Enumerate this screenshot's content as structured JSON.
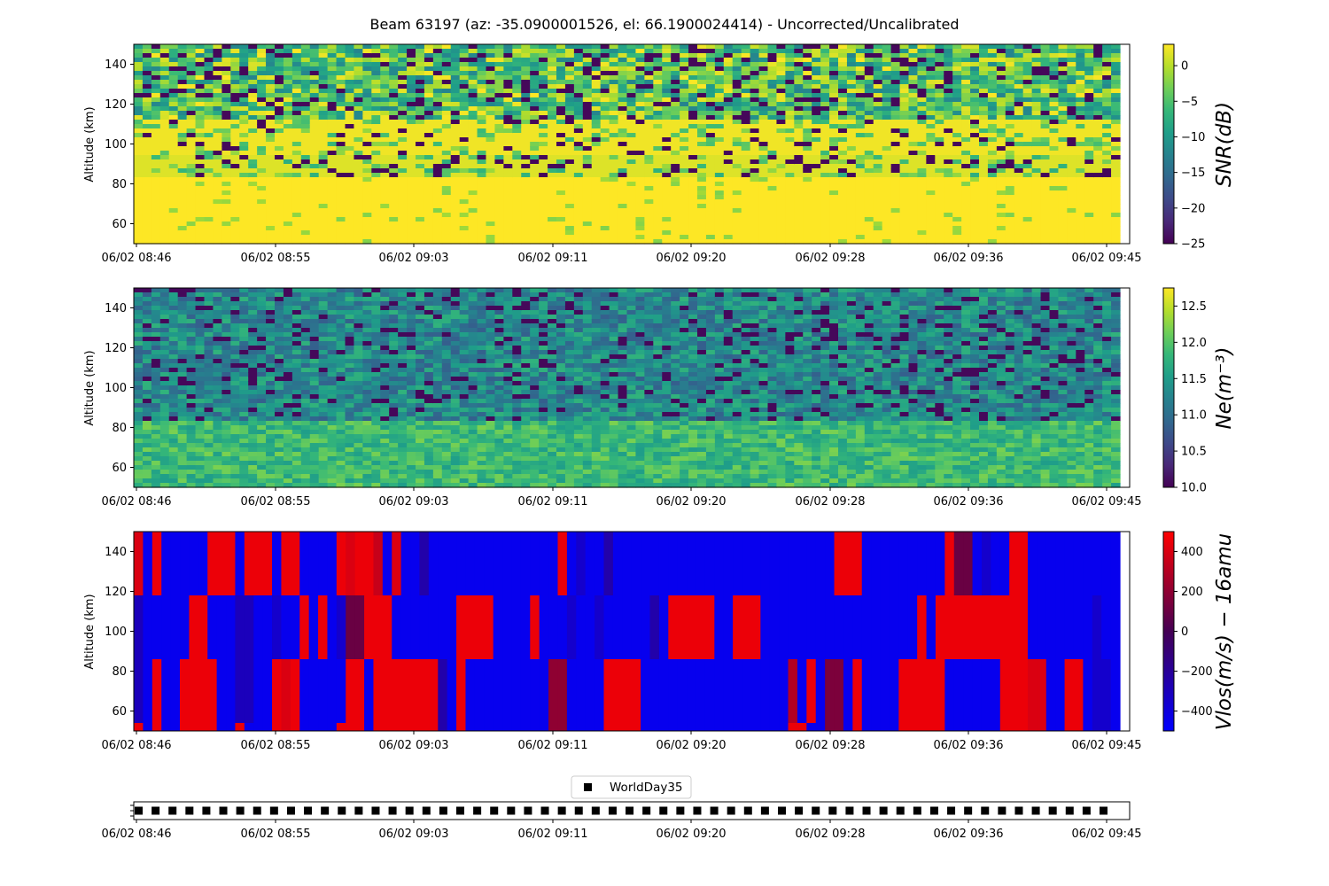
{
  "title": "Beam 63197 (az: -35.0900001526, el: 66.1900024414) - Uncorrected/Uncalibrated",
  "colors": {
    "viridis": [
      "#440154",
      "#482878",
      "#3e4989",
      "#31688e",
      "#26828e",
      "#1f9e89",
      "#35b779",
      "#6ece58",
      "#b5de2b",
      "#fde725"
    ],
    "vlos": [
      "#0000ff",
      "#440154",
      "#ff0000"
    ]
  },
  "chart_data": [
    {
      "type": "heatmap",
      "name": "snr",
      "ylabel": "Altitude (km)",
      "ylim": [
        50,
        150
      ],
      "yticks": [
        "60",
        "80",
        "100",
        "120",
        "140"
      ],
      "xticks": [
        "06/02 08:46",
        "06/02 08:55",
        "06/02 09:03",
        "06/02 09:11",
        "06/02 09:20",
        "06/02 09:28",
        "06/02 09:36",
        "06/02 09:45"
      ],
      "colorbar": {
        "label": "SNR(dB)",
        "range": [
          -25,
          3
        ],
        "ticks": [
          "0",
          "−5",
          "−10",
          "−15",
          "−20",
          "−25"
        ],
        "colormap": "viridis"
      },
      "description": "Saturated (~0 dB) below ~84 km and around 93-110 km; mixed -25 to 0 dB noisy returns above ~110 km"
    },
    {
      "type": "heatmap",
      "name": "ne",
      "ylabel": "Altitude (km)",
      "ylim": [
        50,
        150
      ],
      "yticks": [
        "60",
        "80",
        "100",
        "120",
        "140"
      ],
      "xticks": [
        "06/02 08:46",
        "06/02 08:55",
        "06/02 09:03",
        "06/02 09:11",
        "06/02 09:20",
        "06/02 09:28",
        "06/02 09:36",
        "06/02 09:45"
      ],
      "colorbar": {
        "label": "Ne(m⁻³)",
        "range": [
          10.0,
          12.75
        ],
        "ticks": [
          "12.5",
          "12.0",
          "11.5",
          "11.0",
          "10.5",
          "10.0"
        ],
        "colormap": "viridis"
      },
      "description": "log10 electron density ~11.3-12.0 below 84 km, ~10.5-11.5 above with dark low-value streaks"
    },
    {
      "type": "heatmap",
      "name": "vlos",
      "ylabel": "Altitude (km)",
      "ylim": [
        50,
        150
      ],
      "yticks": [
        "60",
        "80",
        "100",
        "120",
        "140"
      ],
      "xticks": [
        "06/02 08:46",
        "06/02 08:55",
        "06/02 09:03",
        "06/02 09:11",
        "06/02 09:20",
        "06/02 09:28",
        "06/02 09:36",
        "06/02 09:45"
      ],
      "colorbar": {
        "label": "Vlos(m/s) − 16amu",
        "range": [
          -500,
          500
        ],
        "ticks": [
          "400",
          "200",
          "0",
          "−200",
          "−400"
        ],
        "colormap": "bwr-dark"
      },
      "altitude_bands_km": [
        [
          118,
          150
        ],
        [
          86,
          118
        ],
        [
          54,
          86
        ],
        [
          50,
          54
        ]
      ],
      "band_values": [
        [
          400,
          -450,
          450,
          -450,
          -450,
          -450,
          -450,
          -450,
          450,
          450,
          450,
          -450,
          450,
          450,
          450,
          -450,
          450,
          450,
          -450,
          -450,
          -450,
          -450,
          450,
          400,
          450,
          450,
          350,
          -450,
          400,
          -450,
          -450,
          -250,
          -450,
          -450,
          -450,
          -450,
          -450,
          -450,
          -450,
          -450,
          -450,
          -450,
          -450,
          -450,
          -450,
          -450,
          450,
          -450,
          -350,
          -450,
          -450,
          -250,
          -450,
          -450,
          -450,
          -450,
          -450,
          -450,
          -450,
          -450,
          -450,
          -450,
          -450,
          -450,
          -450,
          -450,
          -450,
          -450,
          -450,
          -450,
          -450,
          -450,
          -450,
          -450,
          -450,
          -450,
          450,
          450,
          450,
          -450,
          -450,
          -450,
          -450,
          -450,
          -450,
          -450,
          -450,
          -450,
          450,
          100,
          100,
          -450,
          -350,
          -450,
          -450,
          450,
          450,
          -450,
          -450,
          -450,
          -450,
          -450,
          -450,
          -450,
          -450,
          -450,
          -450
        ],
        [
          -300,
          -450,
          -450,
          -450,
          -450,
          -450,
          450,
          450,
          -450,
          -450,
          -450,
          -300,
          -300,
          -450,
          -450,
          -350,
          -450,
          -450,
          450,
          -450,
          450,
          -450,
          -350,
          100,
          100,
          450,
          450,
          450,
          -450,
          -450,
          -450,
          -450,
          -450,
          -450,
          -450,
          450,
          450,
          450,
          450,
          -450,
          -450,
          -450,
          -450,
          450,
          -450,
          -450,
          -450,
          -350,
          -450,
          -450,
          -350,
          -450,
          -450,
          -450,
          -450,
          -450,
          -250,
          -450,
          450,
          450,
          450,
          450,
          450,
          -450,
          -450,
          450,
          450,
          450,
          -450,
          -450,
          -450,
          -450,
          -450,
          -450,
          -450,
          -450,
          -450,
          -450,
          -450,
          -450,
          -450,
          -450,
          -450,
          -450,
          -450,
          450,
          -450,
          450,
          450,
          450,
          450,
          450,
          450,
          450,
          450,
          450,
          450,
          -450,
          -450,
          -450,
          -450,
          -450,
          -450,
          -450,
          -350,
          -450,
          -450
        ],
        [
          -300,
          -450,
          450,
          -450,
          -450,
          450,
          450,
          450,
          450,
          -450,
          -450,
          -300,
          -300,
          -450,
          -450,
          450,
          400,
          450,
          -450,
          -450,
          -450,
          -450,
          -450,
          450,
          450,
          -450,
          450,
          450,
          450,
          450,
          450,
          450,
          450,
          -250,
          -450,
          450,
          -450,
          -450,
          -450,
          -450,
          -450,
          -450,
          -450,
          -450,
          -450,
          200,
          200,
          -450,
          -450,
          -450,
          -450,
          450,
          450,
          450,
          450,
          -450,
          -450,
          -450,
          -450,
          -450,
          -450,
          -450,
          -450,
          -450,
          -450,
          -450,
          -450,
          -450,
          -450,
          -450,
          -450,
          300,
          -450,
          450,
          -450,
          150,
          150,
          -450,
          450,
          -450,
          -450,
          -450,
          -450,
          450,
          450,
          450,
          450,
          450,
          -450,
          -450,
          -450,
          -450,
          -450,
          -450,
          450,
          450,
          450,
          400,
          400,
          -450,
          -450,
          450,
          450,
          -450,
          -350,
          -350,
          -450
        ],
        [
          450,
          -450,
          450,
          -450,
          -450,
          450,
          450,
          450,
          450,
          -450,
          -450,
          450,
          -450,
          -450,
          -450,
          450,
          400,
          450,
          -450,
          -450,
          -450,
          -450,
          450,
          450,
          450,
          -450,
          450,
          450,
          450,
          450,
          450,
          450,
          450,
          -250,
          -450,
          450,
          -450,
          -450,
          -450,
          -450,
          -450,
          -450,
          -450,
          -450,
          -450,
          200,
          200,
          -450,
          -450,
          -450,
          -450,
          450,
          450,
          450,
          450,
          -450,
          -450,
          -450,
          -450,
          -450,
          -450,
          -450,
          -450,
          -450,
          -450,
          -450,
          -450,
          -450,
          -450,
          -450,
          -450,
          450,
          450,
          -450,
          -450,
          150,
          150,
          -450,
          450,
          -450,
          -450,
          -450,
          -450,
          450,
          450,
          450,
          450,
          450,
          -450,
          -450,
          -450,
          -450,
          -450,
          -450,
          450,
          450,
          450,
          400,
          400,
          -450,
          -450,
          450,
          450,
          -450,
          -350,
          -350,
          -450
        ]
      ]
    },
    {
      "type": "scatter",
      "name": "modes",
      "xticks": [
        "06/02 08:46",
        "06/02 08:55",
        "06/02 09:03",
        "06/02 09:11",
        "06/02 09:20",
        "06/02 09:28",
        "06/02 09:36",
        "06/02 09:45"
      ],
      "legend": {
        "entries": [
          "WorldDay35"
        ],
        "position": "top-center"
      },
      "series": [
        {
          "name": "WorldDay35",
          "marker": "square",
          "color": "#000000",
          "points": 58
        }
      ]
    }
  ]
}
